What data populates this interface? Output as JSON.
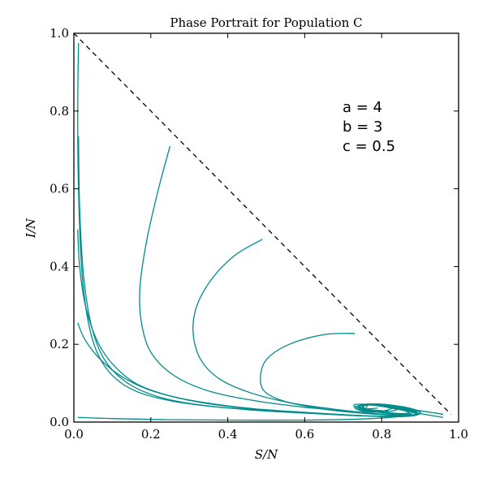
{
  "chart_data": {
    "type": "line",
    "title": "Phase Portrait for Population C",
    "xlabel": "S/N",
    "ylabel": "I/N",
    "xlim": [
      0.0,
      1.0
    ],
    "ylim": [
      0.0,
      1.0
    ],
    "xticks": [
      "0.0",
      "0.2",
      "0.4",
      "0.6",
      "0.8",
      "1.0"
    ],
    "yticks": [
      "0.0",
      "0.2",
      "0.4",
      "0.6",
      "0.8",
      "1.0"
    ],
    "grid": false,
    "annotations": [
      "a = 4",
      "b = 3",
      "c = 0.5"
    ],
    "colors": {
      "trajectory": "#008b8b",
      "boundary": "#000000"
    },
    "boundary_line": {
      "style": "dashed",
      "x": [
        0.0,
        0.98
      ],
      "y": [
        1.0,
        0.02
      ]
    },
    "series": [
      {
        "x": [
          0.012,
          0.01,
          0.012,
          0.02,
          0.035,
          0.06,
          0.1,
          0.16,
          0.25,
          0.36,
          0.5,
          0.63,
          0.74,
          0.82,
          0.87,
          0.89,
          0.87,
          0.82,
          0.76,
          0.73,
          0.75,
          0.8,
          0.84,
          0.82,
          0.78,
          0.75,
          0.76,
          0.79
        ],
        "y": [
          0.975,
          0.8,
          0.6,
          0.4,
          0.27,
          0.18,
          0.12,
          0.08,
          0.055,
          0.04,
          0.03,
          0.022,
          0.017,
          0.014,
          0.016,
          0.022,
          0.032,
          0.042,
          0.045,
          0.038,
          0.028,
          0.026,
          0.032,
          0.042,
          0.046,
          0.04,
          0.034,
          0.036
        ]
      },
      {
        "x": [
          0.012,
          0.015,
          0.025,
          0.045,
          0.08,
          0.14,
          0.22,
          0.32,
          0.45,
          0.58,
          0.7,
          0.8,
          0.86,
          0.88,
          0.85,
          0.79,
          0.74,
          0.75,
          0.8,
          0.83
        ],
        "y": [
          0.735,
          0.55,
          0.38,
          0.25,
          0.16,
          0.1,
          0.065,
          0.045,
          0.032,
          0.024,
          0.018,
          0.015,
          0.018,
          0.026,
          0.038,
          0.046,
          0.04,
          0.03,
          0.028,
          0.036
        ]
      },
      {
        "x": [
          0.01,
          0.015,
          0.03,
          0.06,
          0.1,
          0.16,
          0.24,
          0.34,
          0.46,
          0.6,
          0.72,
          0.82,
          0.88,
          0.9,
          0.86,
          0.79,
          0.74,
          0.76
        ],
        "y": [
          0.495,
          0.4,
          0.3,
          0.21,
          0.15,
          0.1,
          0.07,
          0.05,
          0.035,
          0.025,
          0.018,
          0.014,
          0.016,
          0.025,
          0.038,
          0.046,
          0.04,
          0.03
        ]
      },
      {
        "x": [
          0.01,
          0.03,
          0.07,
          0.12,
          0.19,
          0.28,
          0.38,
          0.5,
          0.63,
          0.75,
          0.84,
          0.89,
          0.88,
          0.82,
          0.76,
          0.74,
          0.77
        ],
        "y": [
          0.255,
          0.21,
          0.16,
          0.12,
          0.085,
          0.06,
          0.043,
          0.031,
          0.022,
          0.016,
          0.014,
          0.02,
          0.032,
          0.044,
          0.046,
          0.038,
          0.031
        ]
      },
      {
        "x": [
          0.01,
          0.1,
          0.25,
          0.42,
          0.6,
          0.75,
          0.85,
          0.87,
          0.82,
          0.76,
          0.75
        ],
        "y": [
          0.012,
          0.009,
          0.006,
          0.005,
          0.005,
          0.008,
          0.015,
          0.025,
          0.038,
          0.044,
          0.036
        ]
      },
      {
        "x": [
          0.25,
          0.22,
          0.19,
          0.172,
          0.175,
          0.2,
          0.26,
          0.35,
          0.47,
          0.6,
          0.72,
          0.82,
          0.88,
          0.88,
          0.82,
          0.76,
          0.74,
          0.78
        ],
        "y": [
          0.71,
          0.6,
          0.47,
          0.35,
          0.26,
          0.18,
          0.12,
          0.08,
          0.055,
          0.038,
          0.027,
          0.019,
          0.017,
          0.026,
          0.04,
          0.046,
          0.038,
          0.03
        ]
      },
      {
        "x": [
          0.49,
          0.42,
          0.36,
          0.32,
          0.31,
          0.33,
          0.38,
          0.46,
          0.56,
          0.67,
          0.77,
          0.85,
          0.89,
          0.87,
          0.81,
          0.76,
          0.75
        ],
        "y": [
          0.47,
          0.43,
          0.37,
          0.3,
          0.23,
          0.16,
          0.11,
          0.075,
          0.05,
          0.034,
          0.023,
          0.017,
          0.021,
          0.033,
          0.043,
          0.045,
          0.036
        ]
      },
      {
        "x": [
          0.73,
          0.65,
          0.56,
          0.5,
          0.485,
          0.5,
          0.56,
          0.66,
          0.76,
          0.85,
          0.9,
          0.88,
          0.82,
          0.76,
          0.74,
          0.77
        ],
        "y": [
          0.228,
          0.225,
          0.2,
          0.16,
          0.11,
          0.075,
          0.05,
          0.032,
          0.022,
          0.017,
          0.022,
          0.034,
          0.044,
          0.046,
          0.038,
          0.031
        ]
      },
      {
        "x": [
          0.96,
          0.9,
          0.83,
          0.77,
          0.73,
          0.74,
          0.8,
          0.86,
          0.88,
          0.84,
          0.78,
          0.75,
          0.77,
          0.82
        ],
        "y": [
          0.012,
          0.022,
          0.035,
          0.045,
          0.045,
          0.035,
          0.024,
          0.02,
          0.026,
          0.038,
          0.045,
          0.041,
          0.032,
          0.028
        ]
      },
      {
        "x": [
          0.96,
          0.88,
          0.8,
          0.75,
          0.75,
          0.8,
          0.86,
          0.87,
          0.82,
          0.77,
          0.76
        ],
        "y": [
          0.02,
          0.032,
          0.042,
          0.045,
          0.036,
          0.026,
          0.022,
          0.03,
          0.042,
          0.045,
          0.037
        ]
      }
    ]
  }
}
